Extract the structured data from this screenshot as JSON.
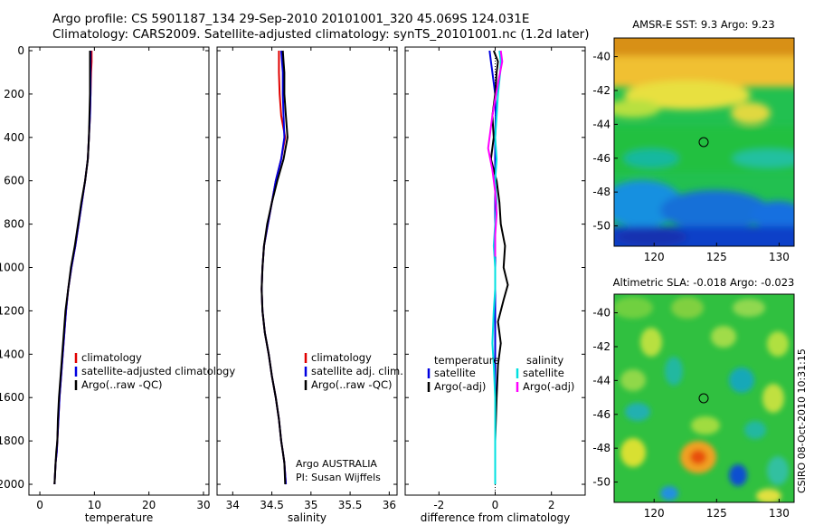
{
  "header": {
    "line1": "Argo profile: CS 5901187_134 29-Sep-2010 20101001_320 45.069S 124.031E",
    "line2": "Climatology: CARS2009. Satellite-adjusted climatology: synTS_20101001.nc (1.2d later)"
  },
  "colors": {
    "climatology": "#e00000",
    "satellite": "#0000e0",
    "argo": "#000000",
    "sat_diff_salinity": "#00e0e0",
    "argo_diff_salinity": "#ff00ff"
  },
  "chart_data": [
    {
      "type": "line",
      "name": "temperature-profile",
      "xlabel": "temperature",
      "ylabel": "",
      "xlim": [
        -2,
        31
      ],
      "ylim": [
        2050,
        0
      ],
      "xticks": [
        0,
        10,
        20,
        30
      ],
      "yticks": [
        0,
        200,
        400,
        600,
        800,
        1000,
        1200,
        1400,
        1600,
        1800,
        2000
      ],
      "legend": [
        "climatology",
        "satellite-adjusted climatology",
        "Argo(..raw -QC)"
      ],
      "legend_colors": [
        "#e00000",
        "#0000e0",
        "#000000"
      ],
      "series": [
        {
          "name": "climatology",
          "color": "#e00000",
          "x": [
            9.5,
            9.5,
            9.4,
            9.3,
            9.2,
            9.0,
            8.8,
            8.3,
            7.7,
            7.1,
            6.5,
            5.8,
            5.2,
            4.8,
            4.5,
            4.2,
            3.9,
            3.6,
            3.4,
            3.2,
            3.1,
            2.9,
            2.7
          ],
          "y": [
            0,
            50,
            100,
            200,
            300,
            400,
            500,
            600,
            700,
            800,
            900,
            1000,
            1100,
            1200,
            1300,
            1400,
            1500,
            1600,
            1700,
            1800,
            1850,
            1900,
            2000
          ]
        },
        {
          "name": "satellite-adjusted climatology",
          "color": "#0000e0",
          "x": [
            9.3,
            9.3,
            9.3,
            9.3,
            9.2,
            9.0,
            8.8,
            8.3,
            7.7,
            7.1,
            6.5,
            5.8,
            5.2,
            4.8,
            4.5,
            4.2,
            3.9,
            3.6,
            3.4,
            3.2,
            3.1,
            2.9,
            2.7
          ],
          "y": [
            0,
            50,
            100,
            200,
            300,
            400,
            500,
            600,
            700,
            800,
            900,
            1000,
            1100,
            1200,
            1300,
            1400,
            1500,
            1600,
            1700,
            1800,
            1850,
            1900,
            2000
          ]
        },
        {
          "name": "Argo(..raw -QC)",
          "color": "#000000",
          "x": [
            9.2,
            9.2,
            9.2,
            9.2,
            9.1,
            9.0,
            8.8,
            8.3,
            7.6,
            7.0,
            6.4,
            5.7,
            5.2,
            4.7,
            4.4,
            4.1,
            3.8,
            3.5,
            3.3,
            3.2,
            3.0,
            2.9,
            2.7
          ],
          "y": [
            0,
            50,
            100,
            200,
            300,
            400,
            500,
            600,
            700,
            800,
            900,
            1000,
            1100,
            1200,
            1300,
            1400,
            1500,
            1600,
            1700,
            1800,
            1850,
            1900,
            2000
          ]
        }
      ]
    },
    {
      "type": "line",
      "name": "salinity-profile",
      "xlabel": "salinity",
      "ylabel": "",
      "xlim": [
        33.8,
        36.1
      ],
      "ylim": [
        2050,
        0
      ],
      "xticks": [
        34,
        34.5,
        35,
        35.5,
        36
      ],
      "xticklabels": [
        "34",
        "34.5",
        "35",
        "35.5",
        "36"
      ],
      "legend": [
        "climatology",
        "satellite adj. clim.",
        "Argo(..raw -QC)"
      ],
      "legend_colors": [
        "#e00000",
        "#0000e0",
        "#000000"
      ],
      "annotation": [
        "Argo AUSTRALIA",
        "PI: Susan Wijffels"
      ],
      "series": [
        {
          "name": "climatology",
          "color": "#e00000",
          "x": [
            34.59,
            34.59,
            34.59,
            34.6,
            34.62,
            34.67,
            34.62,
            34.55,
            34.5,
            34.45,
            34.4,
            34.38,
            34.37,
            34.38,
            34.41,
            34.46,
            34.5,
            34.55,
            34.59,
            34.62,
            34.64,
            34.66,
            34.68
          ],
          "y": [
            0,
            50,
            100,
            200,
            300,
            400,
            500,
            600,
            700,
            800,
            900,
            1000,
            1100,
            1200,
            1300,
            1400,
            1500,
            1600,
            1700,
            1800,
            1850,
            1900,
            2000
          ]
        },
        {
          "name": "satellite adj. clim.",
          "color": "#0000e0",
          "x": [
            34.62,
            34.63,
            34.64,
            34.64,
            34.65,
            34.66,
            34.62,
            34.55,
            34.5,
            34.45,
            34.4,
            34.38,
            34.37,
            34.38,
            34.41,
            34.46,
            34.5,
            34.55,
            34.59,
            34.62,
            34.64,
            34.66,
            34.68
          ],
          "y": [
            0,
            50,
            100,
            200,
            300,
            400,
            500,
            600,
            700,
            800,
            900,
            1000,
            1100,
            1200,
            1300,
            1400,
            1500,
            1600,
            1700,
            1800,
            1850,
            1900,
            2000
          ]
        },
        {
          "name": "Argo(..raw -QC)",
          "color": "#000000",
          "x": [
            34.64,
            34.65,
            34.66,
            34.66,
            34.68,
            34.7,
            34.65,
            34.57,
            34.5,
            34.44,
            34.4,
            34.38,
            34.37,
            34.38,
            34.41,
            34.46,
            34.5,
            34.55,
            34.59,
            34.62,
            34.64,
            34.66,
            34.67
          ],
          "y": [
            0,
            50,
            100,
            200,
            300,
            400,
            500,
            600,
            700,
            800,
            900,
            1000,
            1100,
            1200,
            1300,
            1400,
            1500,
            1600,
            1700,
            1800,
            1850,
            1900,
            2000
          ]
        }
      ]
    },
    {
      "type": "line",
      "name": "difference-profile",
      "xlabel": "difference from climatology",
      "ylabel": "",
      "xlim": [
        -3.2,
        3.2
      ],
      "ylim": [
        2050,
        0
      ],
      "xticks": [
        -2,
        0,
        2
      ],
      "legend_left_title": "temperature",
      "legend_right_title": "salinity",
      "legend_left": [
        "satellite",
        "Argo(-adj)"
      ],
      "legend_left_colors": [
        "#0000e0",
        "#000000"
      ],
      "legend_right": [
        "satellite",
        "Argo(-adj)"
      ],
      "legend_right_colors": [
        "#00e0e0",
        "#ff00ff"
      ],
      "series": [
        {
          "name": "temperature satellite",
          "color": "#0000e0",
          "x": [
            -0.2,
            -0.15,
            -0.1,
            0,
            0.02,
            0,
            0,
            0,
            0,
            0,
            0,
            0,
            0,
            0,
            0,
            0,
            0,
            0,
            0,
            0
          ],
          "y": [
            0,
            50,
            100,
            200,
            300,
            400,
            500,
            600,
            700,
            800,
            900,
            1000,
            1100,
            1200,
            1300,
            1400,
            1500,
            1600,
            1800,
            2000
          ]
        },
        {
          "name": "temperature Argo(-adj)",
          "color": "#000000",
          "x": [
            -0.05,
            0.1,
            0.05,
            0.0,
            -0.1,
            -0.05,
            -0.15,
            0.05,
            0.15,
            0.2,
            0.35,
            0.3,
            0.45,
            0.3,
            0.1,
            0.2,
            0.1,
            0.05,
            0.0,
            0.0
          ],
          "y": [
            0,
            50,
            100,
            200,
            300,
            400,
            500,
            600,
            700,
            800,
            900,
            1000,
            1080,
            1150,
            1250,
            1350,
            1450,
            1600,
            1800,
            2000
          ]
        },
        {
          "name": "salinity satellite",
          "color": "#00e0e0",
          "x": [
            0.15,
            0.2,
            0.18,
            0.1,
            0.05,
            0,
            0.05,
            0.0,
            0.05,
            0.0,
            -0.05,
            0.0,
            0.0,
            -0.05,
            -0.1,
            -0.05,
            0.0,
            0.0,
            0.0,
            0.0
          ],
          "y": [
            0,
            50,
            100,
            200,
            300,
            400,
            500,
            600,
            700,
            800,
            900,
            1000,
            1100,
            1200,
            1350,
            1450,
            1600,
            1700,
            1850,
            2000
          ]
        },
        {
          "name": "salinity Argo(-adj)",
          "color": "#ff00ff",
          "x": [
            0.2,
            0.25,
            0.1,
            -0.1,
            -0.25,
            -0.1,
            0.0,
            0.05,
            0.0,
            0.0
          ],
          "y": [
            0,
            50,
            150,
            300,
            450,
            550,
            650,
            750,
            850,
            950
          ]
        }
      ]
    },
    {
      "type": "heatmap",
      "name": "sst-map",
      "title": "AMSR-E SST: 9.3 Argo: 9.23",
      "xlim": [
        116.8,
        131.2
      ],
      "ylim": [
        -51.2,
        -38.9
      ],
      "xticks": [
        120,
        125,
        130
      ],
      "yticks": [
        -40,
        -42,
        -44,
        -46,
        -48,
        -50
      ],
      "marker": {
        "lon": 124.031,
        "lat": -45.069
      }
    },
    {
      "type": "heatmap",
      "name": "sla-map",
      "title": "Altimetric SLA: -0.018 Argo: -0.023",
      "xlim": [
        116.8,
        131.2
      ],
      "ylim": [
        -51.2,
        -38.9
      ],
      "xticks": [
        120,
        125,
        130
      ],
      "yticks": [
        -40,
        -42,
        -44,
        -46,
        -48,
        -50
      ],
      "marker": {
        "lon": 124.031,
        "lat": -45.069
      }
    }
  ],
  "footer": {
    "credit": "CSIRO 08-Oct-2010 10:31:15"
  }
}
